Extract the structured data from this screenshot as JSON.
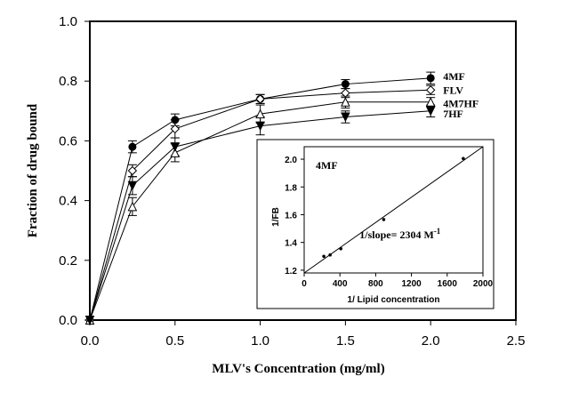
{
  "chart_data": [
    {
      "type": "line",
      "title": "",
      "xlabel": "MLV's Concentration (mg/ml)",
      "ylabel": "Fraction of drug bound",
      "xlim": [
        0.0,
        2.5
      ],
      "ylim": [
        0.0,
        1.0
      ],
      "xticks": [
        "0.0",
        "0.5",
        "1.0",
        "1.5",
        "2.0",
        "2.5"
      ],
      "yticks": [
        "0.0",
        "0.2",
        "0.4",
        "0.6",
        "0.8",
        "1.0"
      ],
      "grid": false,
      "legend_position": "right",
      "x": [
        0.0,
        0.25,
        0.5,
        1.0,
        1.5,
        2.0
      ],
      "series": [
        {
          "name": "4MF",
          "marker": "filled-circle",
          "values": [
            0.0,
            0.58,
            0.67,
            0.74,
            0.79,
            0.81
          ],
          "errors": [
            0.0,
            0.02,
            0.02,
            0.015,
            0.015,
            0.02
          ]
        },
        {
          "name": "FLV",
          "marker": "open-diamond",
          "values": [
            0.0,
            0.5,
            0.64,
            0.74,
            0.76,
            0.77
          ],
          "errors": [
            0.0,
            0.02,
            0.03,
            0.015,
            0.015,
            0.015
          ]
        },
        {
          "name": "4M7HF",
          "marker": "open-triangle-up",
          "values": [
            0.0,
            0.38,
            0.56,
            0.69,
            0.73,
            0.73
          ],
          "errors": [
            0.0,
            0.03,
            0.03,
            0.03,
            0.02,
            0.015
          ]
        },
        {
          "name": "7HF",
          "marker": "filled-triangle-down",
          "values": [
            0.0,
            0.45,
            0.58,
            0.65,
            0.68,
            0.7
          ],
          "errors": [
            0.0,
            0.03,
            0.03,
            0.03,
            0.02,
            0.02
          ]
        }
      ]
    },
    {
      "type": "scatter",
      "title": "4MF",
      "xlabel": "1/ Lipid concentration",
      "ylabel": "1/FB",
      "xlim": [
        0,
        2000
      ],
      "ylim": [
        1.18,
        2.09
      ],
      "xticks": [
        "0",
        "400",
        "800",
        "1200",
        "1600",
        "2000"
      ],
      "yticks": [
        "1.2",
        "1.4",
        "1.6",
        "1.8",
        "2.0"
      ],
      "points": [
        {
          "x": 220,
          "y": 1.3
        },
        {
          "x": 290,
          "y": 1.31
        },
        {
          "x": 410,
          "y": 1.355
        },
        {
          "x": 890,
          "y": 1.565
        },
        {
          "x": 1780,
          "y": 2.005
        }
      ],
      "fit_line": {
        "x": [
          0,
          2000
        ],
        "y": [
          1.18,
          2.09
        ]
      },
      "annotation": {
        "prefix": "1/slope= 2304  M",
        "superscript": "-1"
      }
    }
  ]
}
